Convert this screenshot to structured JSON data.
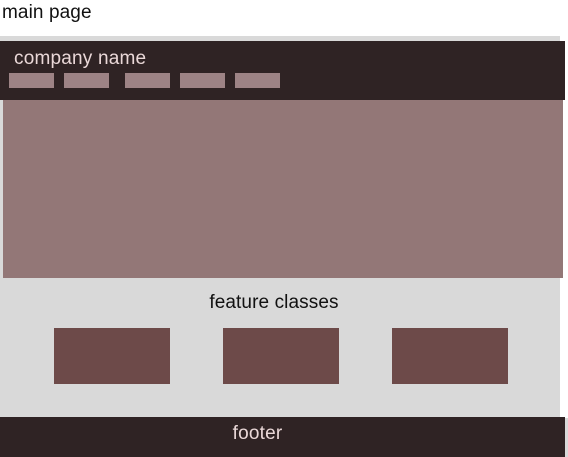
{
  "page_title": "main page",
  "header": {
    "company_name": "company name",
    "background_color": "#2f2324",
    "nav_placeholder_color": "#9d8385"
  },
  "hero": {
    "background_color": "#937777"
  },
  "features": {
    "title": "feature classes",
    "card_color": "#6d4a49"
  },
  "footer": {
    "label": "footer",
    "background_color": "#2f2324"
  },
  "frame": {
    "background_color": "#d9d9d9"
  }
}
